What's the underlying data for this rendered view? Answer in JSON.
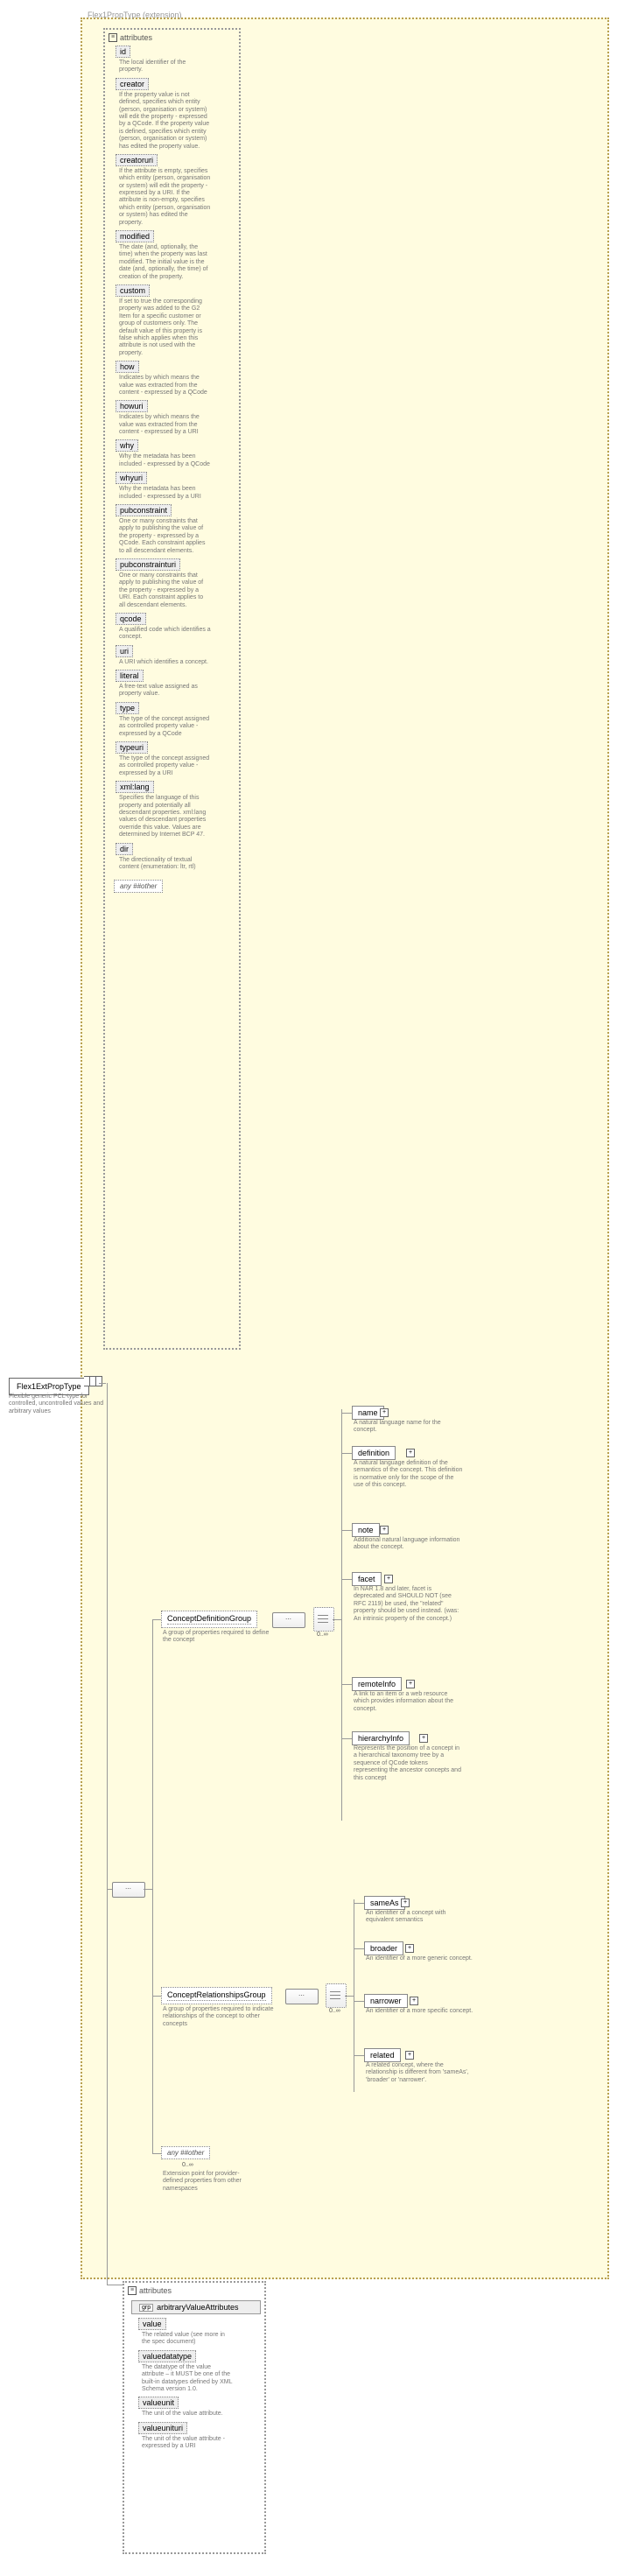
{
  "ext_label": "Flex1PropType (extension)",
  "root": {
    "name": "Flex1ExtPropType",
    "desc": "Flexible generic PCL-type for controlled, uncontrolled values and arbitrary values"
  },
  "attr_header": "attributes",
  "attrs1": [
    {
      "name": "id",
      "desc": "The local identifier of the property."
    },
    {
      "name": "creator",
      "desc": "If the property value is not defined, specifies which entity (person, organisation or system) will edit the property - expressed by a QCode. If the property value is defined, specifies which entity (person, organisation or system) has edited the property value."
    },
    {
      "name": "creatoruri",
      "desc": "If the attribute is empty, specifies which entity (person, organisation or system) will edit the property - expressed by a URI. If the attribute is non-empty, specifies which entity (person, organisation or system) has edited the property."
    },
    {
      "name": "modified",
      "desc": "The date (and, optionally, the time) when the property was last modified. The initial value is the date (and, optionally, the time) of creation of the property."
    },
    {
      "name": "custom",
      "desc": "If set to true the corresponding property was added to the G2 Item for a specific customer or group of customers only. The default value of this property is false which applies when this attribute is not used with the property."
    },
    {
      "name": "how",
      "desc": "Indicates by which means the value was extracted from the content - expressed by a QCode"
    },
    {
      "name": "howuri",
      "desc": "Indicates by which means the value was extracted from the content - expressed by a URI"
    },
    {
      "name": "why",
      "desc": "Why the metadata has been included - expressed by a QCode"
    },
    {
      "name": "whyuri",
      "desc": "Why the metadata has been included - expressed by a URI"
    },
    {
      "name": "pubconstraint",
      "desc": "One or many constraints that apply to publishing the value of the property - expressed by a QCode. Each constraint applies to all descendant elements."
    },
    {
      "name": "pubconstrainturi",
      "desc": "One or many constraints that apply to publishing the value of the property - expressed by a URI. Each constraint applies to all descendant elements."
    },
    {
      "name": "qcode",
      "desc": "A qualified code which identifies a concept."
    },
    {
      "name": "uri",
      "desc": "A URI which identifies a concept."
    },
    {
      "name": "literal",
      "desc": "A free-text value assigned as property value."
    },
    {
      "name": "type",
      "desc": "The type of the concept assigned as controlled property value - expressed by a QCode"
    },
    {
      "name": "typeuri",
      "desc": "The type of the concept assigned as controlled property value - expressed by a URI"
    },
    {
      "name": "xml:lang",
      "desc": "Specifies the language of this property and potentially all descendant properties. xml:lang values of descendant properties override this value. Values are determined by Internet BCP 47."
    },
    {
      "name": "dir",
      "desc": "The directionality of textual content (enumeration: ltr, rtl)"
    }
  ],
  "any_attr": "any ##other",
  "group1": {
    "name": "ConceptDefinitionGroup",
    "desc": "A group of properties required to define the concept"
  },
  "group2": {
    "name": "ConceptRelationshipsGroup",
    "desc": "A group of properties required to indicate relationships of the concept to other concepts"
  },
  "any_elem": {
    "label": "any ##other",
    "card": "0..∞",
    "desc": "Extension point for provider-defined properties from other namespaces"
  },
  "g1_elems": [
    {
      "name": "name",
      "desc": "A natural language name for the concept."
    },
    {
      "name": "definition",
      "desc": "A natural language definition of the semantics of the concept. This definition is normative only for the scope of the use of this concept."
    },
    {
      "name": "note",
      "desc": "Additional natural language information about the concept."
    },
    {
      "name": "facet",
      "desc": "In NAR 1.8 and later, facet is deprecated and SHOULD NOT (see RFC 2119) be used, the \"related\" property should be used instead. (was: An intrinsic property of the concept.)"
    },
    {
      "name": "remoteInfo",
      "desc": "A link to an item or a web resource which provides information about the concept."
    },
    {
      "name": "hierarchyInfo",
      "desc": "Represents the position of a concept in a hierarchical taxonomy tree by a sequence of QCode tokens representing the ancestor concepts and this concept"
    }
  ],
  "g2_elems": [
    {
      "name": "sameAs",
      "desc": "An identifier of a concept with equivalent semantics"
    },
    {
      "name": "broader",
      "desc": "An identifier of a more generic concept."
    },
    {
      "name": "narrower",
      "desc": "An identifier of a more specific concept."
    },
    {
      "name": "related",
      "desc": "A related concept, where the relationship is different from 'sameAs', 'broader' or 'narrower'."
    }
  ],
  "grp_card": "0..∞",
  "arb_group": {
    "prefix": "grp",
    "title": "arbitraryValueAttributes"
  },
  "attrs2": [
    {
      "name": "value",
      "desc": "The related value (see more in the spec document)"
    },
    {
      "name": "valuedatatype",
      "desc": "The datatype of the value attribute – it MUST be one of the built-in datatypes defined by XML Schema version 1.0."
    },
    {
      "name": "valueunit",
      "desc": "The unit of the value attribute."
    },
    {
      "name": "valueunituri",
      "desc": "The unit of the value attribute - expressed by a URI"
    }
  ]
}
